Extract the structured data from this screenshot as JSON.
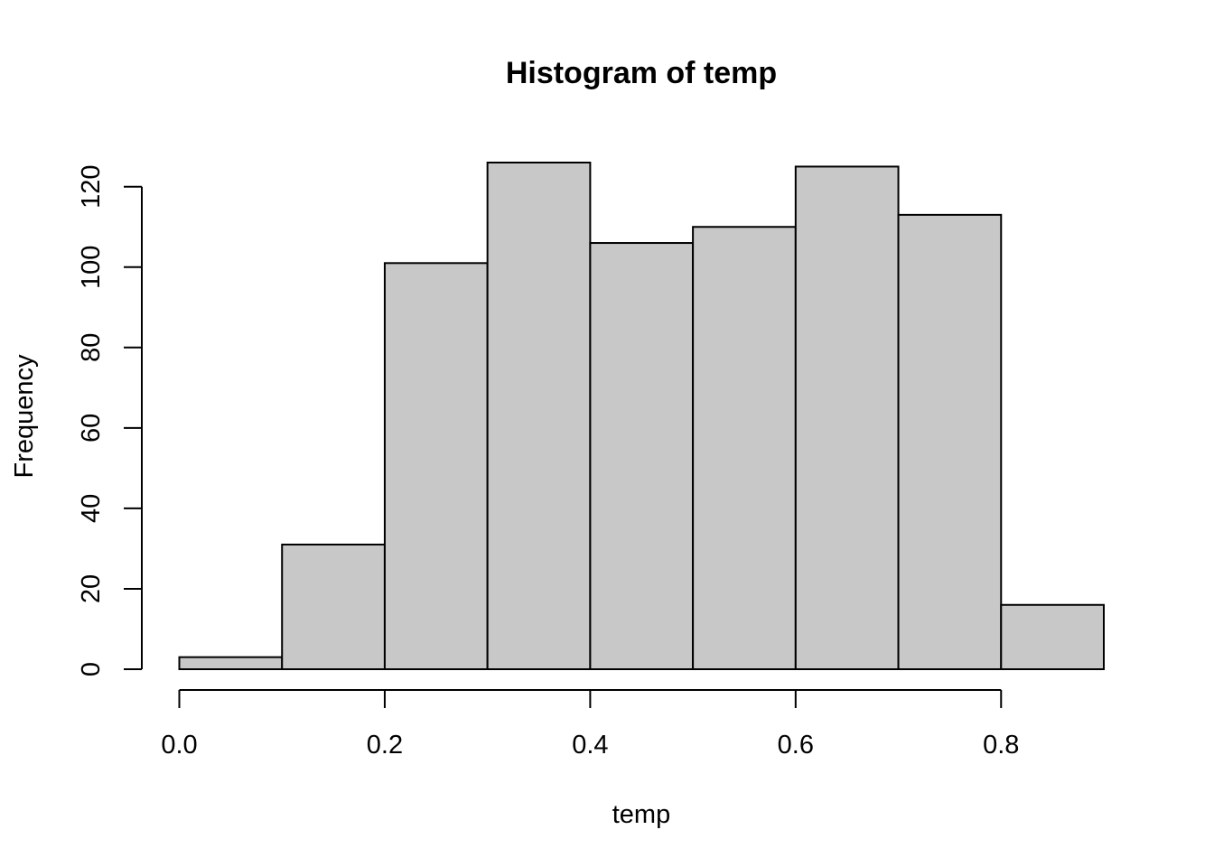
{
  "chart_data": {
    "type": "bar",
    "title": "Histogram of temp",
    "xlabel": "temp",
    "ylabel": "Frequency",
    "bins": [
      {
        "start": 0.0,
        "end": 0.1,
        "count": 3
      },
      {
        "start": 0.1,
        "end": 0.2,
        "count": 31
      },
      {
        "start": 0.2,
        "end": 0.3,
        "count": 101
      },
      {
        "start": 0.3,
        "end": 0.4,
        "count": 126
      },
      {
        "start": 0.4,
        "end": 0.5,
        "count": 106
      },
      {
        "start": 0.5,
        "end": 0.6,
        "count": 110
      },
      {
        "start": 0.6,
        "end": 0.7,
        "count": 125
      },
      {
        "start": 0.7,
        "end": 0.8,
        "count": 113
      },
      {
        "start": 0.8,
        "end": 0.9,
        "count": 16
      }
    ],
    "x_ticks": [
      "0.0",
      "0.2",
      "0.4",
      "0.6",
      "0.8"
    ],
    "x_tick_values": [
      0.0,
      0.2,
      0.4,
      0.6,
      0.8
    ],
    "y_ticks": [
      "0",
      "20",
      "40",
      "60",
      "80",
      "100",
      "120"
    ],
    "y_tick_values": [
      0,
      20,
      40,
      60,
      80,
      100,
      120
    ],
    "xlim": [
      0.0,
      0.9
    ],
    "ylim": [
      0,
      126
    ],
    "grid": false,
    "bar_color": "#c8c8c8",
    "edge_color": "#000000"
  }
}
